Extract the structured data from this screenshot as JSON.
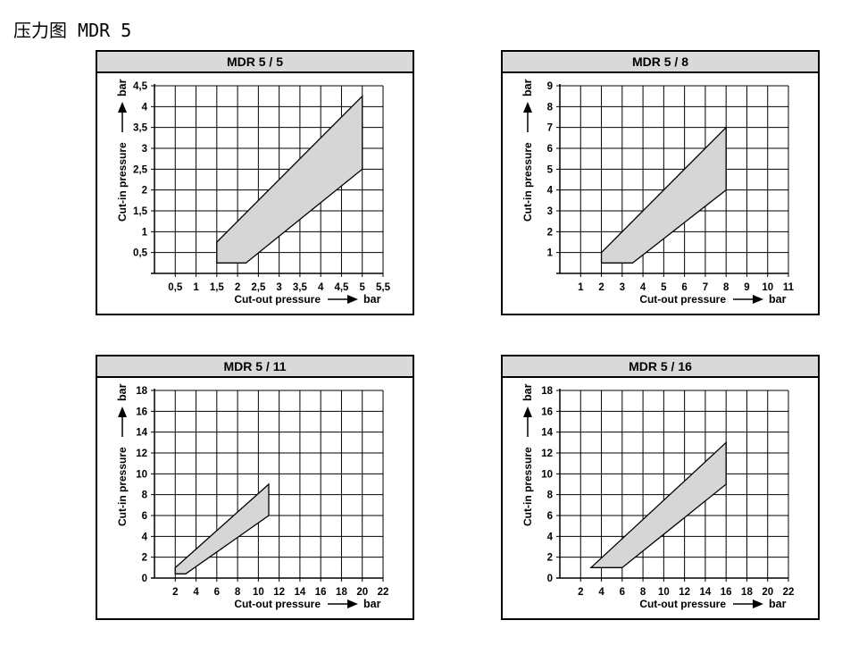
{
  "page": {
    "title": "压力图 MDR 5"
  },
  "chart_data": [
    {
      "type": "area",
      "title": "MDR 5 / 5",
      "xlabel": "Cut-out pressure",
      "ylabel": "Cut-in pressure",
      "unit": "bar",
      "xlim": [
        0,
        5.5
      ],
      "ylim": [
        0,
        4.5
      ],
      "xticks": [
        0.5,
        1,
        1.5,
        2,
        2.5,
        3,
        3.5,
        4,
        4.5,
        5,
        5.5
      ],
      "xtick_labels": [
        "0,5",
        "1",
        "1,5",
        "2",
        "2,5",
        "3",
        "3,5",
        "4",
        "4,5",
        "5",
        "5,5"
      ],
      "yticks": [
        0.5,
        1,
        1.5,
        2,
        2.5,
        3,
        3.5,
        4,
        4.5
      ],
      "ytick_labels": [
        "0,5",
        "1",
        "1,5",
        "2",
        "2,5",
        "3",
        "3,5",
        "4",
        "4,5"
      ],
      "grid": true,
      "region": {
        "x": [
          1.5,
          5,
          5,
          2.2,
          1.5,
          1.5
        ],
        "y": [
          0.75,
          4.25,
          2.5,
          0.25,
          0.25,
          0.75
        ]
      }
    },
    {
      "type": "area",
      "title": "MDR 5 / 8",
      "xlabel": "Cut-out pressure",
      "ylabel": "Cut-in pressure",
      "unit": "bar",
      "xlim": [
        0,
        11
      ],
      "ylim": [
        0,
        9
      ],
      "xticks": [
        1,
        2,
        3,
        4,
        5,
        6,
        7,
        8,
        9,
        10,
        11
      ],
      "xtick_labels": [
        "1",
        "2",
        "3",
        "4",
        "5",
        "6",
        "7",
        "8",
        "9",
        "10",
        "11"
      ],
      "yticks": [
        1,
        2,
        3,
        4,
        5,
        6,
        7,
        8,
        9
      ],
      "ytick_labels": [
        "1",
        "2",
        "3",
        "4",
        "5",
        "6",
        "7",
        "8",
        "9"
      ],
      "grid": true,
      "region": {
        "x": [
          2,
          8,
          8,
          3.5,
          2,
          2
        ],
        "y": [
          1,
          7,
          4,
          0.5,
          0.5,
          1
        ]
      }
    },
    {
      "type": "area",
      "title": "MDR 5 / 11",
      "xlabel": "Cut-out pressure",
      "ylabel": "Cut-in pressure",
      "unit": "bar",
      "xlim": [
        0,
        22
      ],
      "ylim": [
        0,
        18
      ],
      "xticks": [
        2,
        4,
        6,
        8,
        10,
        12,
        14,
        16,
        18,
        20,
        22
      ],
      "xtick_labels": [
        "2",
        "4",
        "6",
        "8",
        "10",
        "12",
        "14",
        "16",
        "18",
        "20",
        "22"
      ],
      "yticks": [
        0,
        2,
        4,
        6,
        8,
        10,
        12,
        14,
        16,
        18
      ],
      "ytick_labels": [
        "0",
        "2",
        "4",
        "6",
        "8",
        "10",
        "12",
        "14",
        "16",
        "18"
      ],
      "grid": true,
      "region": {
        "x": [
          2,
          11,
          11,
          3,
          2,
          2
        ],
        "y": [
          1,
          9,
          6,
          0.4,
          0.4,
          1
        ]
      }
    },
    {
      "type": "area",
      "title": "MDR 5 / 16",
      "xlabel": "Cut-out pressure",
      "ylabel": "Cut-in pressure",
      "unit": "bar",
      "xlim": [
        0,
        22
      ],
      "ylim": [
        0,
        18
      ],
      "xticks": [
        2,
        4,
        6,
        8,
        10,
        12,
        14,
        16,
        18,
        20,
        22
      ],
      "xtick_labels": [
        "2",
        "4",
        "6",
        "8",
        "10",
        "12",
        "14",
        "16",
        "18",
        "20",
        "22"
      ],
      "yticks": [
        0,
        2,
        4,
        6,
        8,
        10,
        12,
        14,
        16,
        18
      ],
      "ytick_labels": [
        "0",
        "2",
        "4",
        "6",
        "8",
        "10",
        "12",
        "14",
        "16",
        "18"
      ],
      "grid": true,
      "region": {
        "x": [
          3,
          16,
          16,
          6,
          3
        ],
        "y": [
          1,
          13,
          9,
          1,
          1
        ]
      }
    }
  ]
}
